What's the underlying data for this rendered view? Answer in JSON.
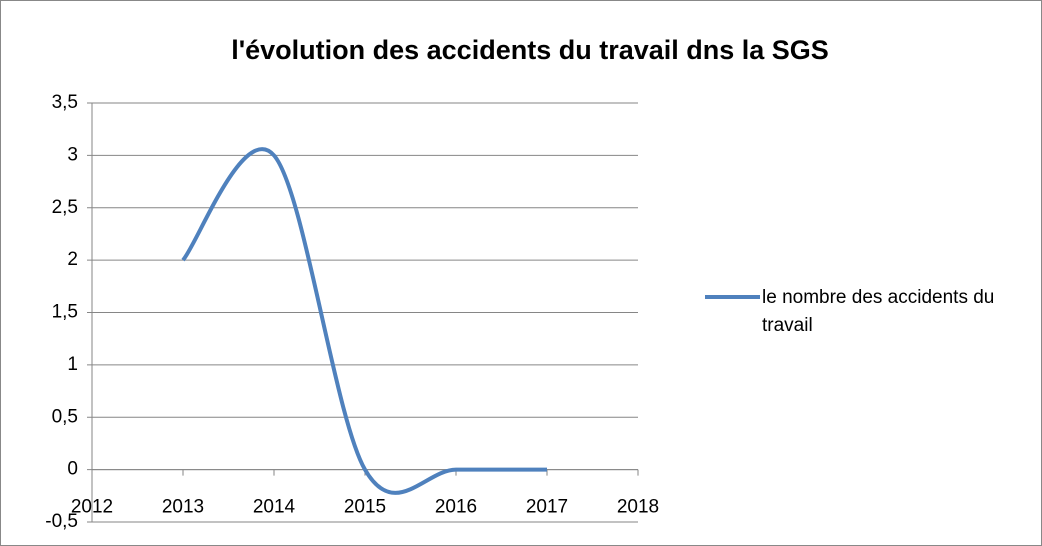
{
  "chart_data": {
    "type": "line",
    "title": "l'évolution des accidents du travail dns la SGS",
    "x": [
      2013,
      2014,
      2015,
      2016,
      2017
    ],
    "series": [
      {
        "name": "le nombre des accidents du travail",
        "color": "#4f81bd",
        "values": [
          2,
          3,
          0,
          0,
          0
        ]
      }
    ],
    "xlim": [
      2012,
      2018
    ],
    "xticks": [
      2012,
      2013,
      2014,
      2015,
      2016,
      2017,
      2018
    ],
    "ylim": [
      -0.5,
      3.5
    ],
    "yticks": [
      {
        "value": -0.5,
        "label": "-0,5"
      },
      0,
      {
        "value": 0.5,
        "label": "0,5"
      },
      1,
      {
        "value": 1.5,
        "label": "1,5"
      },
      2,
      {
        "value": 2.5,
        "label": "2,5"
      },
      3,
      {
        "value": 3.5,
        "label": "3,5"
      }
    ],
    "grid": true,
    "smooth": true,
    "legend": "right"
  }
}
